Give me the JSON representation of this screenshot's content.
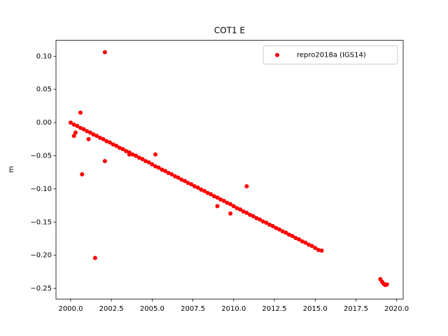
{
  "chart_data": {
    "type": "scatter",
    "title": "COT1 E",
    "y_label": "m",
    "xlim": [
      1999.1,
      2020.4
    ],
    "ylim": [
      -0.266,
      0.124
    ],
    "xticks": [
      {
        "value": 2000,
        "label": "2000.0"
      },
      {
        "value": 2002.5,
        "label": "2002.5"
      },
      {
        "value": 2005,
        "label": "2005.0"
      },
      {
        "value": 2007.5,
        "label": "2007.5"
      },
      {
        "value": 2010,
        "label": "2010.0"
      },
      {
        "value": 2012.5,
        "label": "2012.5"
      },
      {
        "value": 2015,
        "label": "2015.0"
      },
      {
        "value": 2017.5,
        "label": "2017.5"
      },
      {
        "value": 2020,
        "label": "2020.0"
      }
    ],
    "yticks": [
      {
        "value": 0.1,
        "label": "0.10"
      },
      {
        "value": 0.05,
        "label": "0.05"
      },
      {
        "value": 0,
        "label": "0.00"
      },
      {
        "value": -0.05,
        "label": "−0.05"
      },
      {
        "value": -0.1,
        "label": "−0.10"
      },
      {
        "value": -0.15,
        "label": "−0.15"
      },
      {
        "value": -0.2,
        "label": "−0.20"
      },
      {
        "value": -0.25,
        "label": "−0.25"
      }
    ],
    "grid": false,
    "legend": "upper right",
    "series": [
      {
        "name": "repro2018a (IGS14)",
        "color": "#ff0000",
        "x": [
          2000.0,
          2000.2,
          2000.4,
          2000.6,
          2000.8,
          2001.0,
          2001.2,
          2001.4,
          2001.6,
          2001.8,
          2002.0,
          2002.2,
          2002.4,
          2002.6,
          2002.8,
          2003.0,
          2003.2,
          2003.4,
          2003.6,
          2003.8,
          2004.0,
          2004.2,
          2004.4,
          2004.6,
          2004.8,
          2005.0,
          2005.2,
          2005.4,
          2005.6,
          2005.8,
          2006.0,
          2006.2,
          2006.4,
          2006.6,
          2006.8,
          2007.0,
          2007.2,
          2007.4,
          2007.6,
          2007.8,
          2008.0,
          2008.2,
          2008.4,
          2008.6,
          2008.8,
          2009.0,
          2009.2,
          2009.4,
          2009.6,
          2009.8,
          2010.0,
          2010.2,
          2010.4,
          2010.6,
          2010.8,
          2011.0,
          2011.2,
          2011.4,
          2011.6,
          2011.8,
          2012.0,
          2012.2,
          2012.4,
          2012.6,
          2012.8,
          2013.0,
          2013.2,
          2013.4,
          2013.6,
          2013.8,
          2014.0,
          2014.2,
          2014.4,
          2014.6,
          2014.8,
          2015.0,
          2015.2,
          2015.4,
          2002.1,
          2000.6,
          2000.7,
          2001.5,
          2002.1,
          2001.1,
          2000.2,
          2000.3,
          2003.6,
          2005.2,
          2009.0,
          2009.8,
          2010.8,
          2019.0,
          2019.1,
          2019.2,
          2019.3,
          2019.4
        ],
        "values": [
          0.0,
          -0.003,
          -0.005,
          -0.008,
          -0.01,
          -0.013,
          -0.015,
          -0.018,
          -0.02,
          -0.023,
          -0.025,
          -0.028,
          -0.03,
          -0.033,
          -0.035,
          -0.038,
          -0.04,
          -0.043,
          -0.045,
          -0.048,
          -0.05,
          -0.053,
          -0.055,
          -0.058,
          -0.06,
          -0.063,
          -0.066,
          -0.068,
          -0.071,
          -0.073,
          -0.076,
          -0.078,
          -0.081,
          -0.083,
          -0.086,
          -0.088,
          -0.091,
          -0.093,
          -0.096,
          -0.098,
          -0.101,
          -0.103,
          -0.106,
          -0.108,
          -0.111,
          -0.113,
          -0.116,
          -0.118,
          -0.121,
          -0.123,
          -0.126,
          -0.129,
          -0.131,
          -0.134,
          -0.136,
          -0.139,
          -0.141,
          -0.144,
          -0.146,
          -0.149,
          -0.151,
          -0.154,
          -0.156,
          -0.159,
          -0.161,
          -0.164,
          -0.166,
          -0.169,
          -0.171,
          -0.174,
          -0.176,
          -0.179,
          -0.181,
          -0.184,
          -0.186,
          -0.189,
          -0.192,
          -0.193,
          0.106,
          0.015,
          -0.078,
          -0.204,
          -0.058,
          -0.025,
          -0.02,
          -0.015,
          -0.048,
          -0.048,
          -0.126,
          -0.137,
          -0.096,
          -0.236,
          -0.24,
          -0.243,
          -0.245,
          -0.244
        ]
      }
    ]
  }
}
